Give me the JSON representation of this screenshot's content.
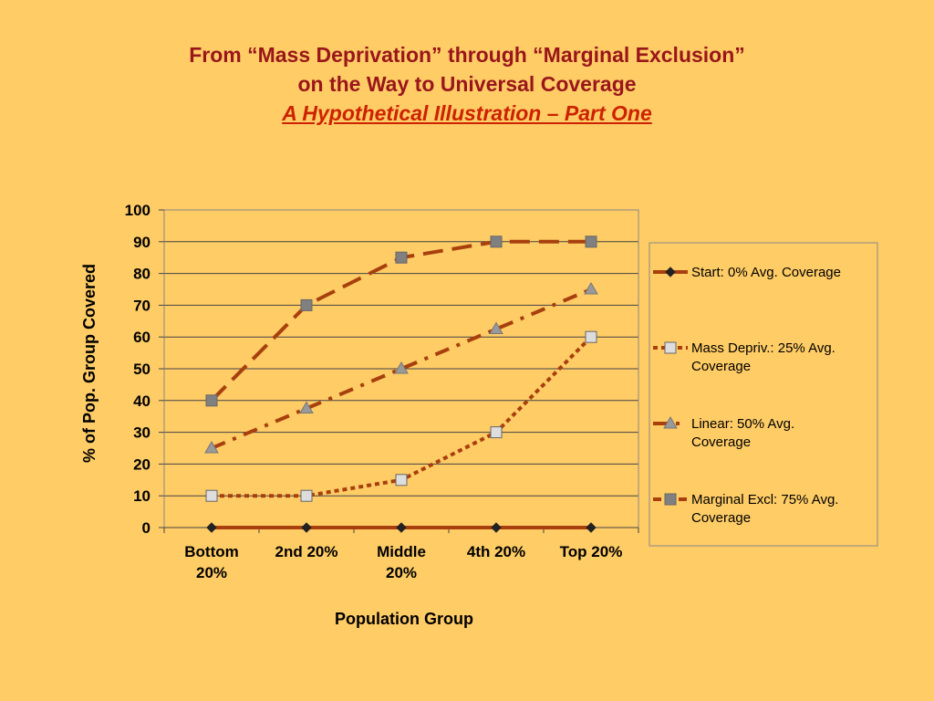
{
  "slide": {
    "title_line1": "From “Mass Deprivation” through “Marginal Exclusion”",
    "title_line2": "on the Way to Universal Coverage",
    "subtitle": "A Hypothetical Illustration – Part One"
  },
  "colors": {
    "background": "#FFCC66",
    "title": "#99161A",
    "subtitle": "#CC2200",
    "series_line": "#A8400E"
  },
  "chart_data": {
    "type": "line",
    "xlabel": "Population Group",
    "ylabel": "% of Pop. Group Covered",
    "ylim": [
      0,
      100
    ],
    "yticks": [
      0,
      10,
      20,
      30,
      40,
      50,
      60,
      70,
      80,
      90,
      100
    ],
    "grid": true,
    "legend_position": "right",
    "categories": [
      [
        "Bottom",
        "20%"
      ],
      [
        "2nd 20%"
      ],
      [
        "Middle",
        "20%"
      ],
      [
        "4th 20%"
      ],
      [
        "Top 20%"
      ]
    ],
    "series": [
      {
        "name": "Start: 0% Avg.  Coverage",
        "legend_lines": [
          "Start: 0% Avg.  Coverage"
        ],
        "values": [
          0,
          0,
          0,
          0,
          0
        ],
        "marker": "diamond",
        "marker_color": "#333333",
        "dash": "solid"
      },
      {
        "name": "Mass Depriv.: 25% Avg. Coverage",
        "legend_lines": [
          "Mass Depriv.: 25% Avg.",
          "Coverage"
        ],
        "values": [
          10,
          10,
          15,
          30,
          60
        ],
        "marker": "square",
        "marker_color": "#DDDDDD",
        "dash": "dot"
      },
      {
        "name": "Linear: 50% Avg. Coverage",
        "legend_lines": [
          "Linear: 50% Avg.",
          "Coverage"
        ],
        "values": [
          25,
          37.5,
          50,
          62.5,
          75
        ],
        "marker": "triangle",
        "marker_color": "#999999",
        "dash": "dashdot"
      },
      {
        "name": "Marginal Excl: 75% Avg. Coverage",
        "legend_lines": [
          "Marginal Excl: 75% Avg.",
          "Coverage"
        ],
        "values": [
          40,
          70,
          85,
          90,
          90
        ],
        "marker": "square",
        "marker_color": "#808080",
        "dash": "longdash"
      }
    ]
  }
}
